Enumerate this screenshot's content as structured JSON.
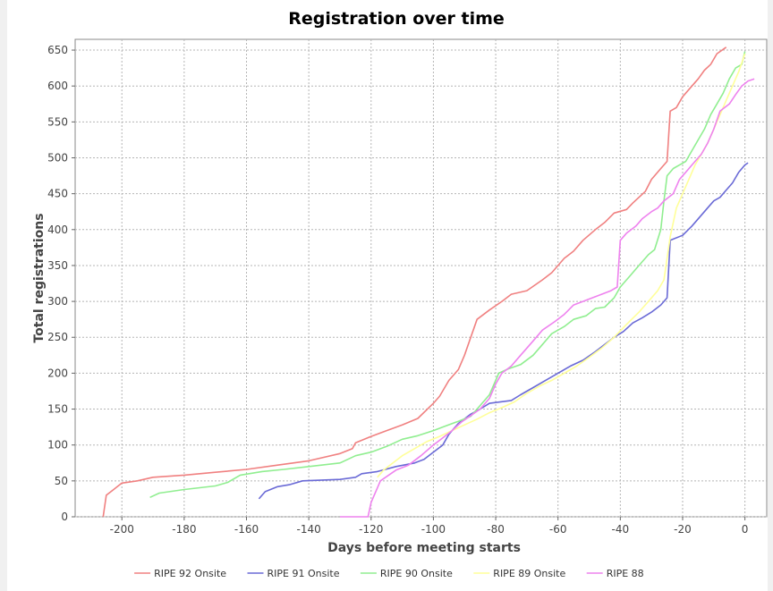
{
  "chart_data": {
    "type": "line",
    "title": "Registration over time",
    "xlabel": "Days before meeting starts",
    "ylabel": "Total registrations",
    "xlim": [
      -215,
      7
    ],
    "ylim": [
      0,
      665
    ],
    "x_ticks": [
      -200,
      -180,
      -160,
      -140,
      -120,
      -100,
      -80,
      -60,
      -40,
      -20,
      0
    ],
    "y_ticks": [
      0,
      50,
      100,
      150,
      200,
      250,
      300,
      350,
      400,
      450,
      500,
      550,
      600,
      650
    ],
    "grid": true,
    "legend_position": "bottom",
    "series": [
      {
        "name": "RIPE 92 Onsite",
        "color": "#f08080",
        "points": [
          [
            -206,
            0
          ],
          [
            -205,
            30
          ],
          [
            -200,
            47
          ],
          [
            -195,
            50
          ],
          [
            -190,
            55
          ],
          [
            -180,
            58
          ],
          [
            -170,
            62
          ],
          [
            -160,
            66
          ],
          [
            -150,
            72
          ],
          [
            -140,
            78
          ],
          [
            -130,
            88
          ],
          [
            -126,
            95
          ],
          [
            -125,
            103
          ],
          [
            -120,
            112
          ],
          [
            -115,
            120
          ],
          [
            -110,
            128
          ],
          [
            -105,
            137
          ],
          [
            -100,
            158
          ],
          [
            -98,
            168
          ],
          [
            -95,
            190
          ],
          [
            -92,
            205
          ],
          [
            -90,
            225
          ],
          [
            -88,
            250
          ],
          [
            -86,
            275
          ],
          [
            -82,
            288
          ],
          [
            -78,
            300
          ],
          [
            -75,
            310
          ],
          [
            -70,
            315
          ],
          [
            -65,
            330
          ],
          [
            -62,
            340
          ],
          [
            -58,
            360
          ],
          [
            -55,
            370
          ],
          [
            -52,
            385
          ],
          [
            -48,
            400
          ],
          [
            -45,
            410
          ],
          [
            -42,
            423
          ],
          [
            -38,
            428
          ],
          [
            -36,
            437
          ],
          [
            -32,
            453
          ],
          [
            -30,
            470
          ],
          [
            -27,
            485
          ],
          [
            -25,
            495
          ],
          [
            -24,
            565
          ],
          [
            -22,
            570
          ],
          [
            -20,
            585
          ],
          [
            -17,
            600
          ],
          [
            -15,
            610
          ],
          [
            -13,
            622
          ],
          [
            -11,
            630
          ],
          [
            -9,
            645
          ],
          [
            -6,
            654
          ]
        ]
      },
      {
        "name": "RIPE 91 Onsite",
        "color": "#6a6ad6",
        "points": [
          [
            -156,
            25
          ],
          [
            -154,
            35
          ],
          [
            -150,
            42
          ],
          [
            -146,
            45
          ],
          [
            -142,
            50
          ],
          [
            -130,
            52
          ],
          [
            -125,
            55
          ],
          [
            -123,
            60
          ],
          [
            -118,
            63
          ],
          [
            -112,
            70
          ],
          [
            -106,
            75
          ],
          [
            -103,
            80
          ],
          [
            -100,
            90
          ],
          [
            -97,
            100
          ],
          [
            -95,
            115
          ],
          [
            -92,
            130
          ],
          [
            -88,
            143
          ],
          [
            -85,
            150
          ],
          [
            -82,
            158
          ],
          [
            -75,
            162
          ],
          [
            -72,
            170
          ],
          [
            -68,
            180
          ],
          [
            -64,
            190
          ],
          [
            -60,
            200
          ],
          [
            -56,
            210
          ],
          [
            -52,
            218
          ],
          [
            -48,
            230
          ],
          [
            -45,
            240
          ],
          [
            -42,
            250
          ],
          [
            -39,
            258
          ],
          [
            -36,
            270
          ],
          [
            -33,
            277
          ],
          [
            -30,
            285
          ],
          [
            -27,
            295
          ],
          [
            -25,
            305
          ],
          [
            -24,
            385
          ],
          [
            -20,
            392
          ],
          [
            -17,
            405
          ],
          [
            -14,
            420
          ],
          [
            -12,
            430
          ],
          [
            -10,
            440
          ],
          [
            -8,
            445
          ],
          [
            -6,
            455
          ],
          [
            -4,
            465
          ],
          [
            -2,
            480
          ],
          [
            0,
            490
          ],
          [
            1,
            493
          ]
        ]
      },
      {
        "name": "RIPE 90 Onsite",
        "color": "#90ee90",
        "points": [
          [
            -191,
            27
          ],
          [
            -188,
            33
          ],
          [
            -180,
            38
          ],
          [
            -170,
            43
          ],
          [
            -166,
            48
          ],
          [
            -162,
            58
          ],
          [
            -155,
            63
          ],
          [
            -148,
            66
          ],
          [
            -140,
            70
          ],
          [
            -130,
            75
          ],
          [
            -125,
            85
          ],
          [
            -120,
            90
          ],
          [
            -115,
            98
          ],
          [
            -110,
            108
          ],
          [
            -105,
            113
          ],
          [
            -100,
            120
          ],
          [
            -97,
            125
          ],
          [
            -92,
            133
          ],
          [
            -88,
            140
          ],
          [
            -85,
            155
          ],
          [
            -82,
            170
          ],
          [
            -79,
            200
          ],
          [
            -76,
            206
          ],
          [
            -72,
            212
          ],
          [
            -68,
            225
          ],
          [
            -65,
            240
          ],
          [
            -62,
            255
          ],
          [
            -58,
            265
          ],
          [
            -55,
            275
          ],
          [
            -51,
            280
          ],
          [
            -48,
            290
          ],
          [
            -45,
            292
          ],
          [
            -42,
            305
          ],
          [
            -40,
            320
          ],
          [
            -37,
            335
          ],
          [
            -34,
            350
          ],
          [
            -31,
            365
          ],
          [
            -29,
            372
          ],
          [
            -27,
            400
          ],
          [
            -26,
            440
          ],
          [
            -25,
            475
          ],
          [
            -23,
            485
          ],
          [
            -19,
            495
          ],
          [
            -17,
            510
          ],
          [
            -15,
            525
          ],
          [
            -13,
            540
          ],
          [
            -11,
            560
          ],
          [
            -9,
            575
          ],
          [
            -7,
            590
          ],
          [
            -5,
            610
          ],
          [
            -3,
            625
          ],
          [
            -1,
            630
          ],
          [
            0,
            648
          ]
        ]
      },
      {
        "name": "RIPE 89 Onsite",
        "color": "#ffff99",
        "points": [
          [
            -118,
            55
          ],
          [
            -116,
            65
          ],
          [
            -113,
            75
          ],
          [
            -110,
            85
          ],
          [
            -106,
            95
          ],
          [
            -102,
            105
          ],
          [
            -98,
            112
          ],
          [
            -94,
            120
          ],
          [
            -90,
            128
          ],
          [
            -86,
            136
          ],
          [
            -82,
            145
          ],
          [
            -78,
            152
          ],
          [
            -74,
            160
          ],
          [
            -70,
            172
          ],
          [
            -66,
            182
          ],
          [
            -62,
            190
          ],
          [
            -58,
            200
          ],
          [
            -54,
            210
          ],
          [
            -50,
            222
          ],
          [
            -46,
            235
          ],
          [
            -42,
            250
          ],
          [
            -38,
            268
          ],
          [
            -34,
            285
          ],
          [
            -30,
            305
          ],
          [
            -28,
            315
          ],
          [
            -26,
            330
          ],
          [
            -24,
            390
          ],
          [
            -22,
            430
          ],
          [
            -20,
            450
          ],
          [
            -18,
            470
          ],
          [
            -16,
            490
          ],
          [
            -14,
            505
          ],
          [
            -12,
            520
          ],
          [
            -10,
            540
          ],
          [
            -8,
            560
          ],
          [
            -6,
            580
          ],
          [
            -4,
            600
          ],
          [
            -2,
            620
          ],
          [
            0,
            645
          ]
        ]
      },
      {
        "name": "RIPE 88",
        "color": "#ee82ee",
        "points": [
          [
            -130,
            0
          ],
          [
            -121,
            0
          ],
          [
            -120,
            20
          ],
          [
            -117,
            50
          ],
          [
            -112,
            65
          ],
          [
            -108,
            72
          ],
          [
            -104,
            85
          ],
          [
            -100,
            100
          ],
          [
            -97,
            110
          ],
          [
            -94,
            120
          ],
          [
            -91,
            132
          ],
          [
            -88,
            141
          ],
          [
            -85,
            150
          ],
          [
            -82,
            165
          ],
          [
            -80,
            185
          ],
          [
            -78,
            200
          ],
          [
            -75,
            210
          ],
          [
            -72,
            225
          ],
          [
            -68,
            245
          ],
          [
            -65,
            260
          ],
          [
            -61,
            272
          ],
          [
            -58,
            282
          ],
          [
            -55,
            295
          ],
          [
            -52,
            300
          ],
          [
            -49,
            305
          ],
          [
            -46,
            310
          ],
          [
            -43,
            315
          ],
          [
            -41,
            320
          ],
          [
            -40,
            385
          ],
          [
            -38,
            395
          ],
          [
            -35,
            405
          ],
          [
            -33,
            415
          ],
          [
            -30,
            425
          ],
          [
            -28,
            430
          ],
          [
            -26,
            440
          ],
          [
            -23,
            450
          ],
          [
            -21,
            470
          ],
          [
            -19,
            480
          ],
          [
            -17,
            490
          ],
          [
            -14,
            505
          ],
          [
            -12,
            520
          ],
          [
            -10,
            540
          ],
          [
            -8,
            565
          ],
          [
            -5,
            575
          ],
          [
            -3,
            588
          ],
          [
            -1,
            600
          ],
          [
            1,
            607
          ],
          [
            3,
            610
          ]
        ]
      }
    ]
  }
}
